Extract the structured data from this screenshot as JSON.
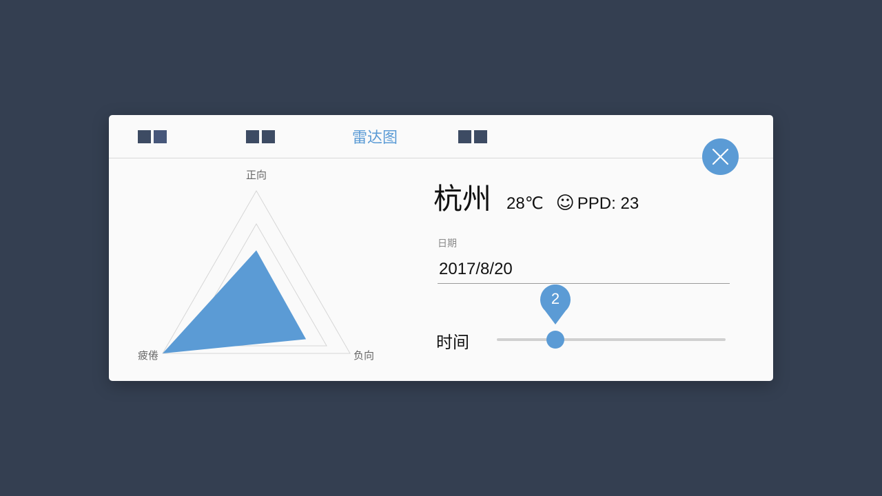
{
  "tabs": [
    {
      "label": "",
      "active": false
    },
    {
      "label": "",
      "active": false
    },
    {
      "label": "雷达图",
      "active": true
    },
    {
      "label": "",
      "active": false
    }
  ],
  "radar": {
    "axes": [
      "正向",
      "负向",
      "疲倦"
    ],
    "max": 1.0,
    "levels": [
      0.5,
      0.75,
      1.0
    ],
    "values": [
      0.55,
      0.53,
      1.0
    ],
    "fill_color": "#5b9bd5",
    "grid_color": "#d6d6d6"
  },
  "info": {
    "city": "杭州",
    "temperature": "28℃",
    "mood_icon": "smile-icon",
    "ppd": "PPD: 23"
  },
  "date_field": {
    "label": "日期",
    "value": "2017/8/20"
  },
  "time_field": {
    "label": "时间",
    "slider_value": "2",
    "slider_fraction": 0.25
  },
  "colors": {
    "accent": "#5b9bd5",
    "background": "#343f51",
    "card": "#fafafa"
  }
}
